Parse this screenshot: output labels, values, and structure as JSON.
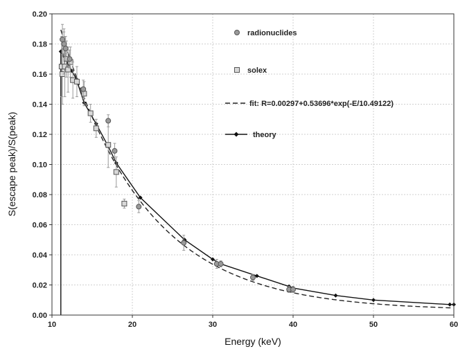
{
  "chart_data": {
    "type": "scatter",
    "xlabel": "Energy (keV)",
    "ylabel": "S(escape peak)/S(peak)",
    "xlim": [
      10,
      60
    ],
    "ylim": [
      0,
      0.2
    ],
    "xticks": [
      10,
      20,
      30,
      40,
      50,
      60
    ],
    "yticks": [
      0.0,
      0.02,
      0.04,
      0.06,
      0.08,
      0.1,
      0.12,
      0.14,
      0.16,
      0.18,
      0.2
    ],
    "xtick_labels": [
      "10",
      "20",
      "30",
      "40",
      "50",
      "60"
    ],
    "ytick_labels": [
      "0.00",
      "0.02",
      "0.04",
      "0.06",
      "0.08",
      "0.10",
      "0.12",
      "0.14",
      "0.16",
      "0.18",
      "0.20"
    ],
    "grid": true,
    "legend_position": "top-right",
    "series": [
      {
        "name": "radionuclides",
        "marker": "circle",
        "color": "#888888",
        "points": [
          {
            "x": 11.3,
            "y": 0.183,
            "err": 0.01
          },
          {
            "x": 11.5,
            "y": 0.18,
            "err": 0.008
          },
          {
            "x": 11.7,
            "y": 0.177,
            "err": 0.008
          },
          {
            "x": 12.2,
            "y": 0.17,
            "err": 0.006
          },
          {
            "x": 13.9,
            "y": 0.15,
            "err": 0.006
          },
          {
            "x": 17.0,
            "y": 0.129,
            "err": 0.004
          },
          {
            "x": 17.8,
            "y": 0.109,
            "err": 0.005
          },
          {
            "x": 20.8,
            "y": 0.072,
            "err": 0.004
          },
          {
            "x": 26.4,
            "y": 0.048,
            "err": 0.005
          },
          {
            "x": 30.5,
            "y": 0.034,
            "err": 0.003
          },
          {
            "x": 31.0,
            "y": 0.034,
            "err": 0.002
          },
          {
            "x": 35.0,
            "y": 0.025,
            "err": 0.002
          },
          {
            "x": 39.5,
            "y": 0.017,
            "err": 0.002
          },
          {
            "x": 40.0,
            "y": 0.017,
            "err": 0.002
          }
        ]
      },
      {
        "name": "solex",
        "marker": "square",
        "color": "#888888",
        "points": [
          {
            "x": 11.2,
            "y": 0.165,
            "err": 0.02
          },
          {
            "x": 11.3,
            "y": 0.16,
            "err": 0.02
          },
          {
            "x": 11.5,
            "y": 0.175,
            "err": 0.015
          },
          {
            "x": 11.6,
            "y": 0.165,
            "err": 0.02
          },
          {
            "x": 11.8,
            "y": 0.17,
            "err": 0.012
          },
          {
            "x": 12.0,
            "y": 0.163,
            "err": 0.015
          },
          {
            "x": 12.3,
            "y": 0.168,
            "err": 0.01
          },
          {
            "x": 12.6,
            "y": 0.156,
            "err": 0.012
          },
          {
            "x": 13.1,
            "y": 0.155,
            "err": 0.01
          },
          {
            "x": 14.0,
            "y": 0.147,
            "err": 0.008
          },
          {
            "x": 14.8,
            "y": 0.134,
            "err": 0.006
          },
          {
            "x": 15.5,
            "y": 0.124,
            "err": 0.006
          },
          {
            "x": 17.0,
            "y": 0.113,
            "err": 0.015
          },
          {
            "x": 18.0,
            "y": 0.095,
            "err": 0.01
          },
          {
            "x": 19.0,
            "y": 0.074,
            "err": 0.003
          }
        ]
      },
      {
        "name": "fit: R=0.00297+0.53696*exp(-E/10.49122)",
        "style": "dashed",
        "color": "#222222",
        "formula": "R=0.00297+0.53696*exp(-E/10.49122)"
      },
      {
        "name": "theory",
        "marker": "diamond",
        "style": "solid",
        "color": "#111111",
        "points": [
          {
            "x": 11.1,
            "y": 0.0
          },
          {
            "x": 11.1,
            "y": 0.175
          },
          {
            "x": 11.5,
            "y": 0.172
          },
          {
            "x": 12.0,
            "y": 0.167
          },
          {
            "x": 12.5,
            "y": 0.162
          },
          {
            "x": 13.0,
            "y": 0.157
          },
          {
            "x": 14.0,
            "y": 0.141
          },
          {
            "x": 15.5,
            "y": 0.127
          },
          {
            "x": 17.0,
            "y": 0.112
          },
          {
            "x": 18.0,
            "y": 0.101
          },
          {
            "x": 21.0,
            "y": 0.078
          },
          {
            "x": 26.5,
            "y": 0.05
          },
          {
            "x": 30.0,
            "y": 0.037
          },
          {
            "x": 31.0,
            "y": 0.034
          },
          {
            "x": 35.5,
            "y": 0.026
          },
          {
            "x": 39.5,
            "y": 0.019
          },
          {
            "x": 40.0,
            "y": 0.018
          },
          {
            "x": 45.3,
            "y": 0.013
          },
          {
            "x": 50.0,
            "y": 0.01
          },
          {
            "x": 59.5,
            "y": 0.007
          },
          {
            "x": 60.0,
            "y": 0.007
          }
        ]
      }
    ]
  }
}
